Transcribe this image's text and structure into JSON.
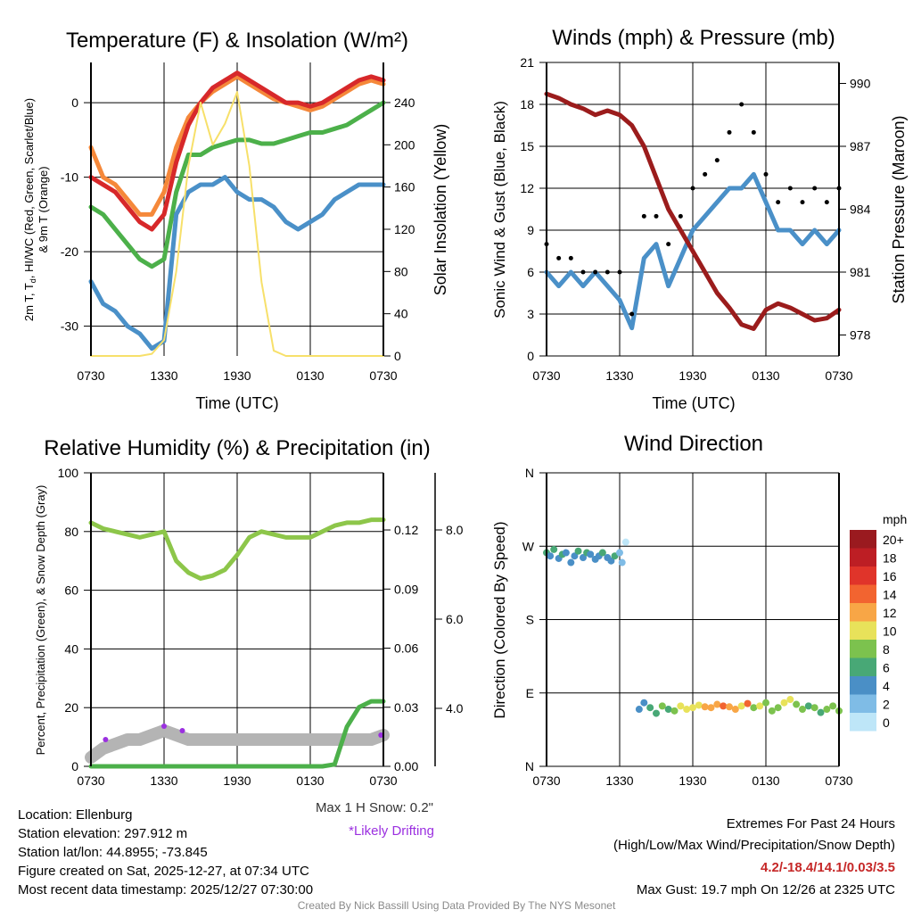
{
  "panels": {
    "temp": {
      "title": "Temperature (F) & Insolation (W/m²)",
      "ylabel_line1": "2m T, T",
      "ylabel_sub": "d",
      "ylabel_rest": ", HI/WC (Red, Green, Scarlet/Blue)",
      "ylabel_line2": "& 9m T (Orange)",
      "ylabel_right": "Solar Insolation (Yellow)",
      "xlabel": "Time (UTC)"
    },
    "wind": {
      "title": "Winds (mph) & Pressure (mb)",
      "ylabel": "Sonic Wind & Gust (Blue, Black)",
      "ylabel_right": "Station Pressure (Maroon)",
      "xlabel": "Time (UTC)"
    },
    "rh": {
      "title": "Relative Humidity (%) & Precipitation (in)",
      "ylabel": "Percent, Precipitation (Green), & Snow Depth (Gray)",
      "max_snow": "Max 1 H Snow: 0.2\"",
      "drifting": "*Likely Drifting"
    },
    "dir": {
      "title": "Wind Direction",
      "ylabel": "Direction (Colored By Speed)",
      "colorbar_title": "mph"
    }
  },
  "info": {
    "location": "Location: Ellenburg",
    "elevation": "Station elevation: 297.912 m",
    "latlon": "Station lat/lon: 44.8955; -73.845",
    "created": "Figure created on Sat, 2025-12-27, at 07:34 UTC",
    "recent": "Most recent data timestamp: 2025/12/27 07:30:00",
    "extremes_title": "Extremes For Past 24 Hours",
    "extremes_sub": "(High/Low/Max Wind/Precipitation/Snow Depth)",
    "extremes_values": "4.2/-18.4/14.1/0.03/3.5",
    "max_gust": "Max Gust: 19.7 mph On 12/26 at 2325 UTC",
    "credit": "Created By Nick Bassill Using Data Provided By The NYS Mesonet"
  },
  "colors": {
    "red": "#d7282a",
    "orange": "#f5883a",
    "green": "#4cb04a",
    "blue": "#4a90c8",
    "yellow": "#f7e06a",
    "black": "#000000",
    "maroon": "#9b1c1c",
    "lightgreen": "#8dc64a",
    "gray": "#b4b4b4",
    "purple": "#9b30e0",
    "credit": "#8a8a8a",
    "extremes": "#c62828"
  },
  "chart_data": [
    {
      "type": "line",
      "title": "Temperature (F) & Insolation (W/m²)",
      "xlabel": "Time (UTC)",
      "x_ticks": [
        "0730",
        "1330",
        "1930",
        "0130",
        "0730"
      ],
      "x_hours": 24,
      "ylim": [
        -34,
        5.4
      ],
      "y_ticks": [
        0,
        -10,
        -20,
        -30
      ],
      "y2lim": [
        0,
        278
      ],
      "y2_ticks": [
        0,
        40,
        80,
        120,
        160,
        200,
        240
      ],
      "series": [
        {
          "name": "9m T (Orange)",
          "axis": "left",
          "color": "#f5883a",
          "values": [
            -6,
            -10,
            -11,
            -13,
            -15,
            -15,
            -12,
            -6,
            -2,
            0,
            1.5,
            2.5,
            3.5,
            2.5,
            1.5,
            0.5,
            0,
            -0.5,
            -1,
            -0.5,
            0.5,
            1.5,
            2.5,
            3,
            2.5
          ]
        },
        {
          "name": "2m T (Red)",
          "axis": "left",
          "color": "#d7282a",
          "values": [
            -10,
            -11,
            -12,
            -14,
            -16,
            -17,
            -15,
            -8,
            -3,
            0,
            2,
            3,
            4,
            3,
            2,
            1,
            0,
            0,
            -0.5,
            0,
            1,
            2,
            3,
            3.5,
            3
          ]
        },
        {
          "name": "HI/WC (Green)",
          "axis": "left",
          "color": "#4cb04a",
          "values": [
            -14,
            -15,
            -17,
            -19,
            -21,
            -22,
            -21,
            -12,
            -7,
            -7,
            -6,
            -5.5,
            -5,
            -5,
            -5.5,
            -5.5,
            -5,
            -4.5,
            -4,
            -4,
            -3.5,
            -3,
            -2,
            -1,
            0
          ]
        },
        {
          "name": "Td (Blue)",
          "axis": "left",
          "color": "#4a90c8",
          "values": [
            -24,
            -27,
            -28,
            -30,
            -31,
            -33,
            -32,
            -15,
            -12,
            -11,
            -11,
            -10,
            -12,
            -13,
            -13,
            -14,
            -16,
            -17,
            -16,
            -15,
            -13,
            -12,
            -11,
            -11,
            -11
          ]
        },
        {
          "name": "Solar Insolation (Yellow)",
          "axis": "right",
          "color": "#f7e06a",
          "values": [
            0,
            0,
            0,
            0,
            0,
            2,
            15,
            80,
            180,
            240,
            200,
            220,
            250,
            180,
            70,
            5,
            0,
            0,
            0,
            0,
            0,
            0,
            0,
            0,
            0
          ]
        }
      ]
    },
    {
      "type": "line",
      "title": "Winds (mph) & Pressure (mb)",
      "xlabel": "Time (UTC)",
      "x_ticks": [
        "0730",
        "1330",
        "1930",
        "0130",
        "0730"
      ],
      "x_hours": 24,
      "ylim": [
        0,
        21
      ],
      "y_ticks": [
        0,
        3,
        6,
        9,
        12,
        15,
        18,
        21
      ],
      "y2lim": [
        977.0,
        991.0
      ],
      "y2_ticks": [
        978,
        981,
        984,
        987,
        990
      ],
      "series": [
        {
          "name": "Sonic Wind (Blue)",
          "axis": "left",
          "color": "#4a90c8",
          "values": [
            6,
            5,
            6,
            5,
            6,
            5,
            4,
            2,
            7,
            8,
            5,
            7,
            9,
            10,
            11,
            12,
            12,
            13,
            11,
            9,
            9,
            8,
            9,
            8,
            9
          ]
        },
        {
          "name": "Gust (Black)",
          "axis": "left",
          "color": "#000000",
          "style": "dots",
          "values": [
            8,
            7,
            7,
            6,
            6,
            6,
            6,
            3,
            10,
            10,
            8,
            10,
            12,
            13,
            14,
            16,
            18,
            16,
            13,
            11,
            12,
            11,
            12,
            11,
            12
          ]
        },
        {
          "name": "Station Pressure (Maroon)",
          "axis": "right",
          "color": "#9b1c1c",
          "values": [
            989.5,
            989.3,
            989,
            988.8,
            988.5,
            988.7,
            988.5,
            988,
            987,
            985.5,
            984,
            983,
            982,
            981,
            980,
            979.3,
            978.5,
            978.3,
            979.2,
            979.5,
            979.3,
            979,
            978.7,
            978.8,
            979.2
          ]
        }
      ]
    },
    {
      "type": "line",
      "title": "Relative Humidity (%) & Precipitation (in)",
      "x_ticks": [
        "0730",
        "1330",
        "1930",
        "0130",
        "0730"
      ],
      "x_hours": 24,
      "ylim": [
        0,
        100
      ],
      "y_ticks": [
        0,
        20,
        40,
        60,
        80,
        100
      ],
      "y2lim": [
        0,
        0.149
      ],
      "y2_ticks": [
        "0.00",
        "0.03",
        "0.06",
        "0.09",
        "0.12"
      ],
      "y3lim": [
        2.7,
        9.28
      ],
      "y3_ticks": [
        "4.0",
        "6.0",
        "8.0"
      ],
      "series": [
        {
          "name": "Snow Depth (Gray)",
          "axis": "snow",
          "color": "#b4b4b4",
          "values": [
            2.9,
            3.1,
            3.2,
            3.3,
            3.3,
            3.4,
            3.5,
            3.4,
            3.3,
            3.3,
            3.3,
            3.3,
            3.3,
            3.3,
            3.3,
            3.3,
            3.3,
            3.3,
            3.3,
            3.3,
            3.3,
            3.3,
            3.3,
            3.3,
            3.4
          ]
        },
        {
          "name": "Relative Humidity",
          "axis": "left",
          "color": "#8dc64a",
          "values": [
            83,
            81,
            80,
            79,
            78,
            79,
            80,
            70,
            66,
            64,
            65,
            67,
            72,
            78,
            80,
            79,
            78,
            78,
            78,
            80,
            82,
            83,
            83,
            84,
            84
          ]
        },
        {
          "name": "Precipitation (Green)",
          "axis": "right",
          "color": "#4cb04a",
          "values": [
            0,
            0,
            0,
            0,
            0,
            0,
            0,
            0,
            0,
            0,
            0,
            0,
            0,
            0,
            0,
            0,
            0,
            0,
            0,
            0,
            0.001,
            0.02,
            0.03,
            0.033,
            0.033
          ]
        },
        {
          "name": "Likely Drifting",
          "axis": "snow",
          "color": "#9b30e0",
          "style": "dots",
          "hours": [
            1.2,
            6,
            7.5,
            23.8
          ],
          "values": [
            3.3,
            3.6,
            3.5,
            3.4
          ]
        }
      ]
    },
    {
      "type": "scatter",
      "title": "Wind Direction",
      "ylabel": "Direction (Colored By Speed)",
      "x_ticks": [
        "0730",
        "1330",
        "1930",
        "0130",
        "0730"
      ],
      "x_hours": 24,
      "y_ticks": [
        "N",
        "E",
        "S",
        "W",
        "N"
      ],
      "ylim": [
        0,
        360
      ],
      "points": {
        "hours": [
          0,
          0.3,
          0.6,
          1,
          1.3,
          1.6,
          2,
          2.3,
          2.6,
          3,
          3.3,
          3.6,
          4,
          4.3,
          4.6,
          5,
          5.3,
          5.6,
          6,
          6.2,
          6.5,
          7.6,
          8,
          8.5,
          9,
          9.5,
          10,
          10.5,
          11,
          11.5,
          12,
          12.5,
          13,
          13.5,
          14,
          14.5,
          15,
          15.5,
          16,
          16.5,
          17,
          17.5,
          18,
          18.5,
          19,
          19.5,
          20,
          20.5,
          21,
          21.5,
          22,
          22.5,
          23,
          23.5,
          24
        ],
        "direction": [
          262,
          258,
          266,
          255,
          260,
          262,
          250,
          258,
          264,
          256,
          262,
          260,
          254,
          258,
          262,
          256,
          252,
          258,
          262,
          250,
          275,
          70,
          78,
          72,
          65,
          74,
          70,
          68,
          74,
          70,
          72,
          75,
          73,
          72,
          76,
          74,
          73,
          70,
          74,
          77,
          72,
          74,
          78,
          68,
          72,
          78,
          82,
          76,
          70,
          74,
          72,
          66,
          70,
          74,
          68
        ],
        "speed": [
          6,
          5,
          6,
          5,
          6,
          5,
          4,
          5,
          6,
          5,
          6,
          5,
          4,
          5,
          6,
          5,
          4,
          6,
          3,
          2,
          1,
          4,
          5,
          7,
          6,
          8,
          6,
          9,
          10,
          10,
          10,
          11,
          12,
          12,
          13,
          14,
          13,
          12,
          11,
          14,
          9,
          10,
          9,
          8,
          9,
          10,
          11,
          9,
          8,
          7,
          8,
          6,
          9,
          8,
          9
        ]
      },
      "colorbar": {
        "labels": [
          "20+",
          "18",
          "16",
          "14",
          "12",
          "10",
          "8",
          "6",
          "4",
          "2",
          "0"
        ],
        "colors": [
          "#9a1a1f",
          "#bd1e24",
          "#e0342a",
          "#f26430",
          "#f8a646",
          "#e8e25a",
          "#7cc24e",
          "#48a876",
          "#4a8fc6",
          "#7fbce6",
          "#bee6f8"
        ]
      }
    }
  ]
}
